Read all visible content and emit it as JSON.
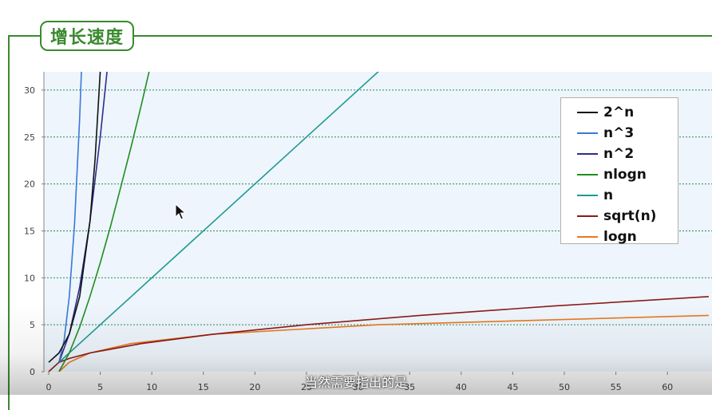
{
  "header": {
    "title": "增长速度"
  },
  "subtitle": "当然需要指出的是",
  "chart_data": {
    "type": "line",
    "title": "增长速度",
    "xlabel": "",
    "ylabel": "",
    "xlim": [
      0,
      65
    ],
    "ylim": [
      0,
      32
    ],
    "x_ticks": [
      "0",
      "5",
      "10",
      "15",
      "20",
      "25",
      "30",
      "35",
      "40",
      "45",
      "50",
      "55",
      "60"
    ],
    "y_ticks": [
      "0",
      "5",
      "10",
      "15",
      "20",
      "25",
      "30"
    ],
    "grid": "horizontal dashed",
    "legend_position": "top-right",
    "series": [
      {
        "name": "2^n",
        "color": "#111111",
        "x": [
          0,
          1,
          2,
          3,
          4,
          4.5,
          5
        ],
        "y": [
          1,
          2,
          4,
          8,
          16,
          22.6,
          32
        ]
      },
      {
        "name": "n^3",
        "color": "#3a78d8",
        "x": [
          1,
          1.5,
          2,
          2.5,
          3,
          3.17
        ],
        "y": [
          1,
          3.4,
          8,
          15.6,
          27,
          32
        ]
      },
      {
        "name": "n^2",
        "color": "#2d2d8c",
        "x": [
          1,
          2,
          3,
          4,
          5,
          5.66
        ],
        "y": [
          1,
          4,
          9,
          16,
          25,
          32
        ]
      },
      {
        "name": "nlogn",
        "color": "#1f8f1f",
        "x": [
          1,
          2,
          3,
          4,
          5,
          6,
          7,
          8,
          9,
          10
        ],
        "y": [
          0,
          2,
          4.75,
          8,
          11.6,
          15.5,
          19.7,
          24,
          28.5,
          33.2
        ]
      },
      {
        "name": "n",
        "color": "#1f9a93",
        "x": [
          1,
          32
        ],
        "y": [
          1,
          32
        ]
      },
      {
        "name": "sqrt(n)",
        "color": "#8b1a1a",
        "x": [
          0,
          1,
          2,
          4,
          9,
          16,
          25,
          36,
          49,
          64
        ],
        "y": [
          0,
          1,
          1.41,
          2,
          3,
          4,
          5,
          6,
          7,
          8
        ]
      },
      {
        "name": "logn",
        "color": "#e8791e",
        "x": [
          1,
          2,
          4,
          8,
          16,
          32,
          64
        ],
        "y": [
          0,
          1,
          2,
          3,
          4,
          5,
          6
        ]
      }
    ]
  }
}
